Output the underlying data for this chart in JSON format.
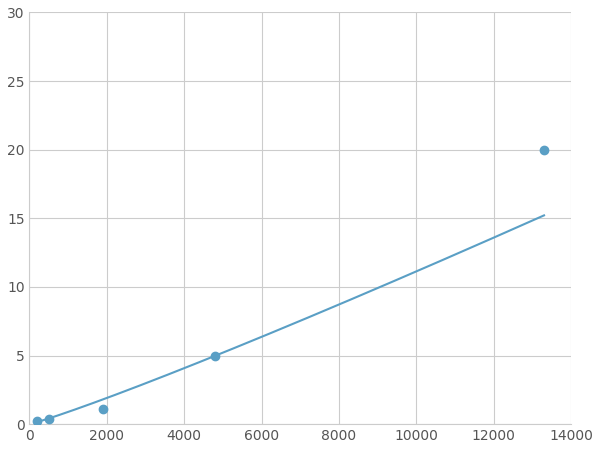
{
  "x_points": [
    200,
    500,
    1900,
    4800,
    13300
  ],
  "y_points": [
    0.2,
    0.4,
    1.1,
    5.0,
    20.0
  ],
  "line_color": "#5a9fc5",
  "marker_color": "#5a9fc5",
  "marker_size": 6,
  "line_width": 1.5,
  "xlim": [
    0,
    14000
  ],
  "ylim": [
    0,
    30
  ],
  "xticks": [
    0,
    2000,
    4000,
    6000,
    8000,
    10000,
    12000,
    14000
  ],
  "yticks": [
    0,
    5,
    10,
    15,
    20,
    25,
    30
  ],
  "grid_color": "#cccccc",
  "background_color": "#ffffff",
  "tick_label_color": "#555555",
  "tick_label_fontsize": 10
}
